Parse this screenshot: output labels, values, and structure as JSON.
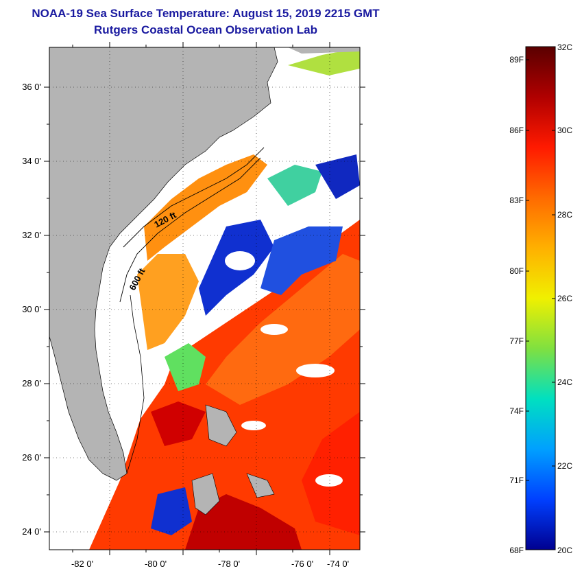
{
  "title": {
    "line1": "NOAA-19 Sea Surface Temperature:  August 15, 2019 2215 GMT",
    "line2": "Rutgers Coastal Ocean Observation Lab"
  },
  "map": {
    "lat_labels": [
      "36 0'",
      "34 0'",
      "32 0'",
      "30 0'",
      "28 0'",
      "26 0'",
      "24 0'"
    ],
    "lon_labels": [
      "-82 0'",
      "-80 0'",
      "-78 0'",
      "-76 0'",
      "-74 0'"
    ],
    "contour_labels": [
      "120 ft",
      "600 ft"
    ],
    "colors": {
      "land": "#b4b4b4",
      "cloud": "#ffffff",
      "frame": "#000000"
    }
  },
  "colorbar": {
    "fahrenheit_labels": [
      "89F",
      "86F",
      "83F",
      "80F",
      "77F",
      "74F",
      "71F",
      "68F"
    ],
    "celsius_labels": [
      "32C",
      "30C",
      "28C",
      "26C",
      "24C",
      "22C",
      "20C"
    ],
    "gradient": [
      "#5a0000",
      "#b00000",
      "#ff1a00",
      "#ff6a00",
      "#ffb000",
      "#f0f000",
      "#80e040",
      "#00e0c0",
      "#00a0ff",
      "#0040ff",
      "#000090"
    ]
  }
}
